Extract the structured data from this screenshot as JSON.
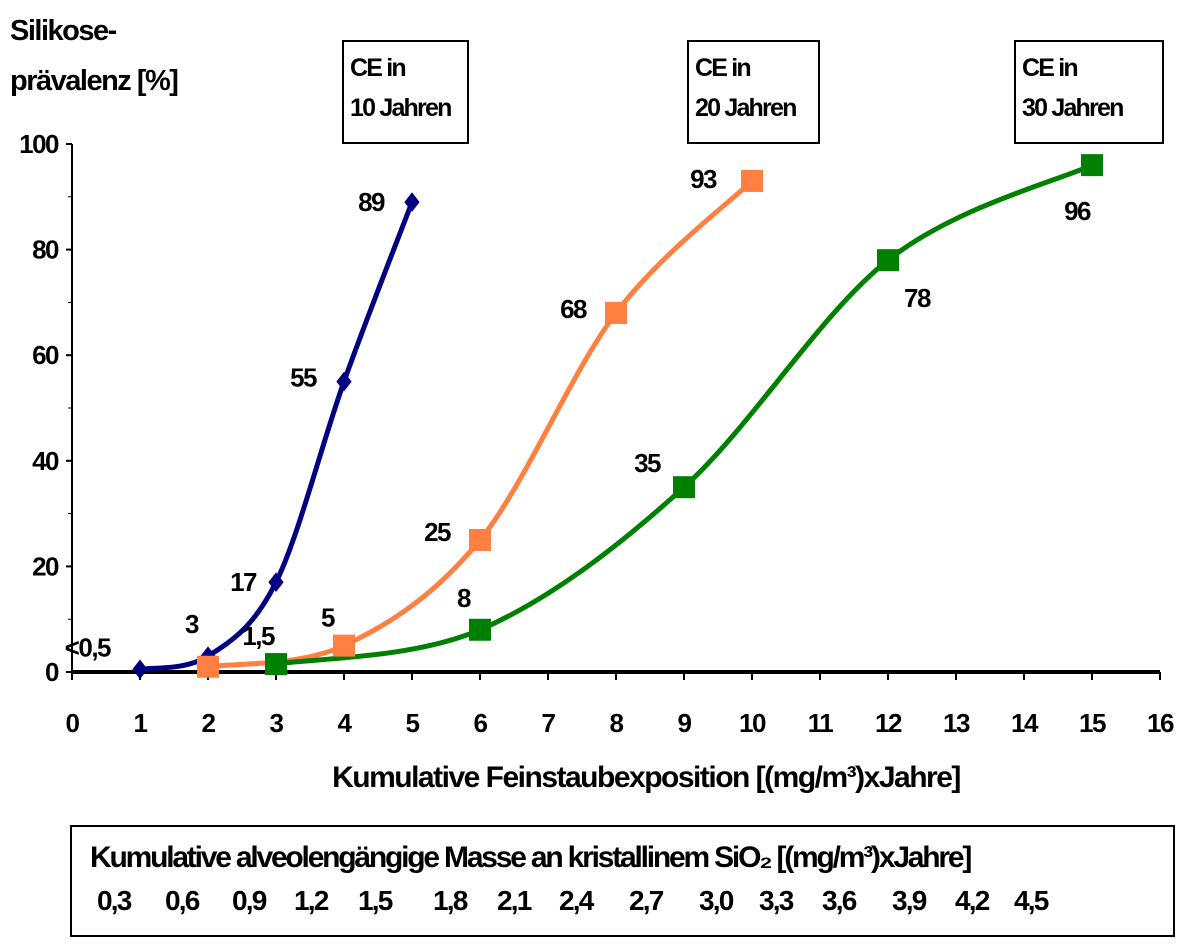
{
  "chart_data": {
    "type": "line",
    "ylabel_lines": [
      "Silikose-",
      "prävalenz [%]"
    ],
    "xlabel": "Kumulative Feinstaubexposition [(mg/m³)xJahre]",
    "xlim": [
      0,
      16
    ],
    "ylim": [
      0,
      100
    ],
    "x_ticks": [
      "0",
      "1",
      "2",
      "3",
      "4",
      "5",
      "6",
      "7",
      "8",
      "9",
      "10",
      "11",
      "12",
      "13",
      "14",
      "15",
      "16"
    ],
    "y_ticks": [
      "0",
      "20",
      "40",
      "60",
      "80",
      "100"
    ],
    "grid": false,
    "series": [
      {
        "color": "#000080",
        "marker": "diamond",
        "box_lines": [
          "CE in",
          "10 Jahren"
        ],
        "points": [
          {
            "x": 1,
            "y": 0.5,
            "label": "<0,5"
          },
          {
            "x": 2,
            "y": 3,
            "label": "3"
          },
          {
            "x": 3,
            "y": 17,
            "label": "17"
          },
          {
            "x": 4,
            "y": 55,
            "label": "55"
          },
          {
            "x": 5,
            "y": 89,
            "label": "89"
          }
        ]
      },
      {
        "color": "#ff8040",
        "marker": "square",
        "box_lines": [
          "CE in",
          "20 Jahren"
        ],
        "points": [
          {
            "x": 2,
            "y": 1,
            "label": ""
          },
          {
            "x": 4,
            "y": 5,
            "label": "5"
          },
          {
            "x": 6,
            "y": 25,
            "label": "25"
          },
          {
            "x": 8,
            "y": 68,
            "label": "68"
          },
          {
            "x": 10,
            "y": 93,
            "label": "93"
          }
        ]
      },
      {
        "color": "#008000",
        "marker": "square",
        "box_lines": [
          "CE in",
          "30 Jahren"
        ],
        "points": [
          {
            "x": 3,
            "y": 1.5,
            "label": "1,5"
          },
          {
            "x": 6,
            "y": 8,
            "label": "8"
          },
          {
            "x": 9,
            "y": 35,
            "label": "35"
          },
          {
            "x": 12,
            "y": 78,
            "label": "78"
          },
          {
            "x": 15,
            "y": 96,
            "label": "96"
          }
        ]
      }
    ]
  },
  "sio2_table": {
    "title": "Kumulative alveolengängige Masse an kristallinem SiO₂ [(mg/m³)xJahre]",
    "values": [
      "0,3",
      "0,6",
      "0,9",
      "1,2",
      "1,5",
      "1,8",
      "2,1",
      "2,4",
      "2,7",
      "3,0",
      "3,3",
      "3,6",
      "3,9",
      "4,2",
      "4,5"
    ]
  }
}
